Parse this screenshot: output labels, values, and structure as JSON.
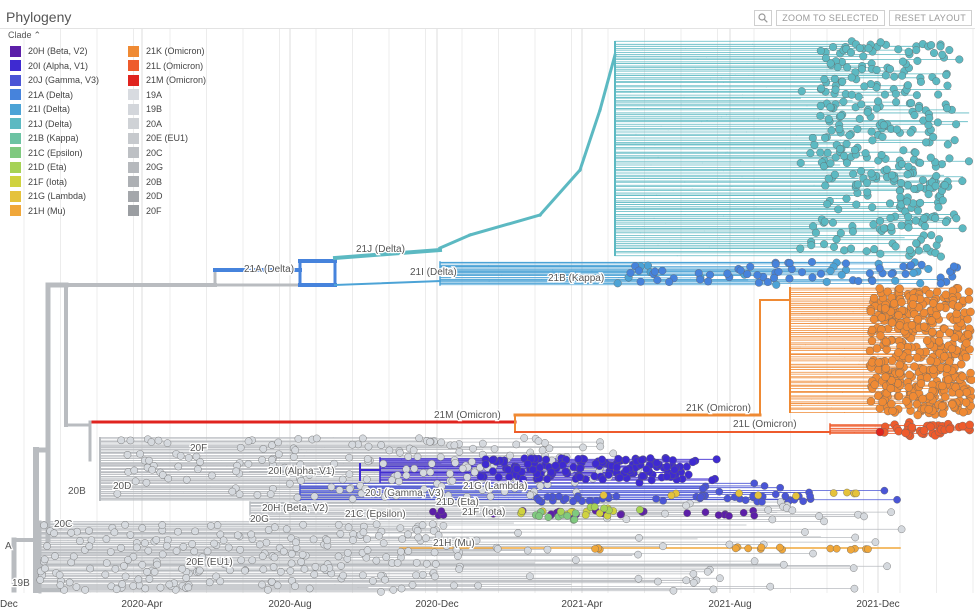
{
  "panel": {
    "title": "Phylogeny"
  },
  "toolbar": {
    "zoom_label": "ZOOM TO SELECTED",
    "reset_label": "RESET LAYOUT",
    "search_icon": "magnifier-icon"
  },
  "legend": {
    "title": "Clade",
    "items": [
      {
        "label": "20H (Beta, V2)",
        "color": "#5c1fa8"
      },
      {
        "label": "20I (Alpha, V1)",
        "color": "#3e2ad1"
      },
      {
        "label": "20J (Gamma, V3)",
        "color": "#4a55d6"
      },
      {
        "label": "21A (Delta)",
        "color": "#4683dc"
      },
      {
        "label": "21I (Delta)",
        "color": "#4ca3d6"
      },
      {
        "label": "21J (Delta)",
        "color": "#5cb9c2"
      },
      {
        "label": "21B (Kappa)",
        "color": "#6cc3a3"
      },
      {
        "label": "21C (Epsilon)",
        "color": "#7fc97f"
      },
      {
        "label": "21D (Eta)",
        "color": "#a6d256"
      },
      {
        "label": "21F (Iota)",
        "color": "#cfd23f"
      },
      {
        "label": "21G (Lambda)",
        "color": "#e5c23c"
      },
      {
        "label": "21H (Mu)",
        "color": "#f0a73a"
      },
      {
        "label": "21K (Omicron)",
        "color": "#ef8a34"
      },
      {
        "label": "21L (Omicron)",
        "color": "#ee5b2c"
      },
      {
        "label": "21M (Omicron)",
        "color": "#e0241f"
      },
      {
        "label": "19A",
        "color": "#d8dbe0"
      },
      {
        "label": "19B",
        "color": "#d3d6db"
      },
      {
        "label": "20A",
        "color": "#cfd2d6"
      },
      {
        "label": "20E (EU1)",
        "color": "#c6c9cd"
      },
      {
        "label": "20C",
        "color": "#bdc0c4"
      },
      {
        "label": "20G",
        "color": "#b6b9bd"
      },
      {
        "label": "20B",
        "color": "#adb0b4"
      },
      {
        "label": "20D",
        "color": "#a4a7ab"
      },
      {
        "label": "20F",
        "color": "#9b9ea2"
      }
    ]
  },
  "chart_data": {
    "type": "scatter",
    "x_axis": {
      "ticks": [
        "2020-Apr",
        "2020-Aug",
        "2020-Dec",
        "2021-Apr",
        "2021-Aug",
        "2021-Dec"
      ],
      "left_edge_label": "Dec"
    },
    "branch_labels": [
      {
        "text": "21J (Delta)",
        "clade": "21J (Delta)"
      },
      {
        "text": "21A (Delta)",
        "clade": "21A (Delta)"
      },
      {
        "text": "21I (Delta)",
        "clade": "21I (Delta)"
      },
      {
        "text": "21B (Kappa)",
        "clade": "21B (Kappa)"
      },
      {
        "text": "21M (Omicron)",
        "clade": "21M (Omicron)"
      },
      {
        "text": "21K (Omicron)",
        "clade": "21K (Omicron)"
      },
      {
        "text": "21L (Omicron)",
        "clade": "21L (Omicron)"
      },
      {
        "text": "20F",
        "clade": "20F"
      },
      {
        "text": "20I (Alpha, V1)",
        "clade": "20I (Alpha, V1)"
      },
      {
        "text": "20D",
        "clade": "20D"
      },
      {
        "text": "20B",
        "clade": "20B"
      },
      {
        "text": "21G (Lambda)",
        "clade": "21G (Lambda)"
      },
      {
        "text": "20J (Gamma, V3)",
        "clade": "20J (Gamma, V3)"
      },
      {
        "text": "21D (Eta)",
        "clade": "21D (Eta)"
      },
      {
        "text": "20H (Beta, V2)",
        "clade": "20H (Beta, V2)"
      },
      {
        "text": "21C (Epsilon)",
        "clade": "21C (Epsilon)"
      },
      {
        "text": "21F (Iota)",
        "clade": "21F (Iota)"
      },
      {
        "text": "20G",
        "clade": "20G"
      },
      {
        "text": "20C",
        "clade": "20C"
      },
      {
        "text": "21H (Mu)",
        "clade": "21H (Mu)"
      },
      {
        "text": "20E (EU1)",
        "clade": "20E (EU1)"
      },
      {
        "text": "19B",
        "clade": "19B"
      },
      {
        "text": "A",
        "clade": "19A"
      }
    ],
    "grid": true,
    "legend_position": "top-left"
  }
}
